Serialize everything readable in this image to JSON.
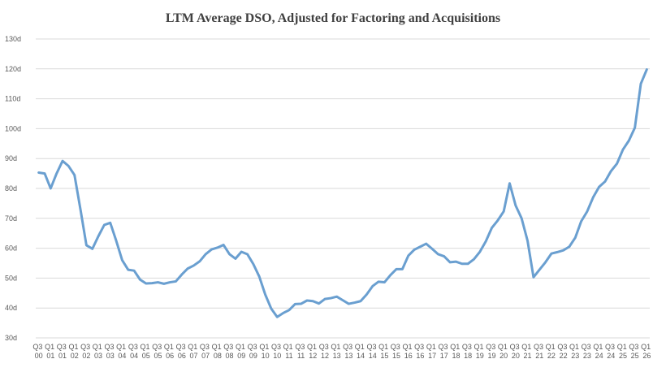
{
  "chart_data": {
    "type": "line",
    "title": "LTM Average DSO, Adjusted for Factoring and Acquisitions",
    "categories": [
      "Q3 00",
      null,
      "Q1 01",
      null,
      "Q3 01",
      null,
      "Q1 02",
      null,
      "Q3 02",
      null,
      "Q1 03",
      null,
      "Q3 03",
      null,
      "Q1 04",
      null,
      "Q3 04",
      null,
      "Q1 05",
      null,
      "Q3 05",
      null,
      "Q1 06",
      null,
      "Q3 06",
      null,
      "Q1 07",
      null,
      "Q3 07",
      null,
      "Q1 08",
      null,
      "Q3 08",
      null,
      "Q1 09",
      null,
      "Q3 09",
      null,
      "Q1 10",
      null,
      "Q3 10",
      null,
      "Q1 11",
      null,
      "Q3 11",
      null,
      "Q1 12",
      null,
      "Q3 12",
      null,
      "Q1 13",
      null,
      "Q3 13",
      null,
      "Q1 14",
      null,
      "Q3 14",
      null,
      "Q1 15",
      null,
      "Q3 15",
      null,
      "Q1 16",
      null,
      "Q3 16",
      null,
      "Q1 17",
      null,
      "Q3 17",
      null,
      "Q1 18",
      null,
      "Q3 18",
      null,
      "Q1 19",
      null,
      "Q3 19",
      null,
      "Q1 20",
      null,
      "Q3 20",
      null,
      "Q1 21",
      null,
      "Q3 21",
      null,
      "Q1 22",
      null,
      "Q3 22",
      null,
      "Q1 23",
      null,
      "Q3 23",
      null,
      "Q1 24",
      null,
      "Q3 24",
      null,
      "Q1 25",
      null,
      "Q3 25",
      null,
      "Q1 26"
    ],
    "values": [
      85.3,
      85,
      80,
      85,
      89.2,
      87.5,
      84.5,
      73,
      61,
      59.8,
      64,
      67.8,
      68.5,
      62.5,
      56,
      52.8,
      52.5,
      49.5,
      48.2,
      48.3,
      48.6,
      48.1,
      48.6,
      48.9,
      51.2,
      53.2,
      54.2,
      55.6,
      58,
      59.6,
      60.2,
      61.1,
      58,
      56.5,
      58.8,
      58,
      54.7,
      50.5,
      44.5,
      39.8,
      37,
      38.3,
      39.3,
      41.3,
      41.4,
      42.5,
      42.3,
      41.5,
      43,
      43.3,
      43.8,
      42.6,
      41.4,
      41.8,
      42.3,
      44.5,
      47.3,
      48.8,
      48.6,
      51,
      53,
      53,
      57.5,
      59.5,
      60.5,
      61.5,
      59.8,
      58,
      57.3,
      55.3,
      55.5,
      54.8,
      54.8,
      56.3,
      58.8,
      62.3,
      66.8,
      69.3,
      72.3,
      81.7,
      74.3,
      70,
      62.5,
      50.3,
      52.8,
      55.3,
      58.2,
      58.7,
      59.3,
      60.5,
      63.5,
      69,
      72.3,
      77,
      80.5,
      82.3,
      85.8,
      88.3,
      93,
      96,
      100.3,
      115,
      119.8
    ],
    "color": "#6a9fd0",
    "ylim": [
      30,
      130
    ],
    "yticks": [
      {
        "value": 30,
        "label": "30d"
      },
      {
        "value": 40,
        "label": "40d"
      },
      {
        "value": 50,
        "label": "50d"
      },
      {
        "value": 60,
        "label": "60d"
      },
      {
        "value": 70,
        "label": "70d"
      },
      {
        "value": 80,
        "label": "80d"
      },
      {
        "value": 90,
        "label": "90d"
      },
      {
        "value": 100,
        "label": "100d"
      },
      {
        "value": 110,
        "label": "110d"
      },
      {
        "value": 120,
        "label": "120d"
      },
      {
        "value": 130,
        "label": "130d"
      }
    ],
    "grid": true
  }
}
